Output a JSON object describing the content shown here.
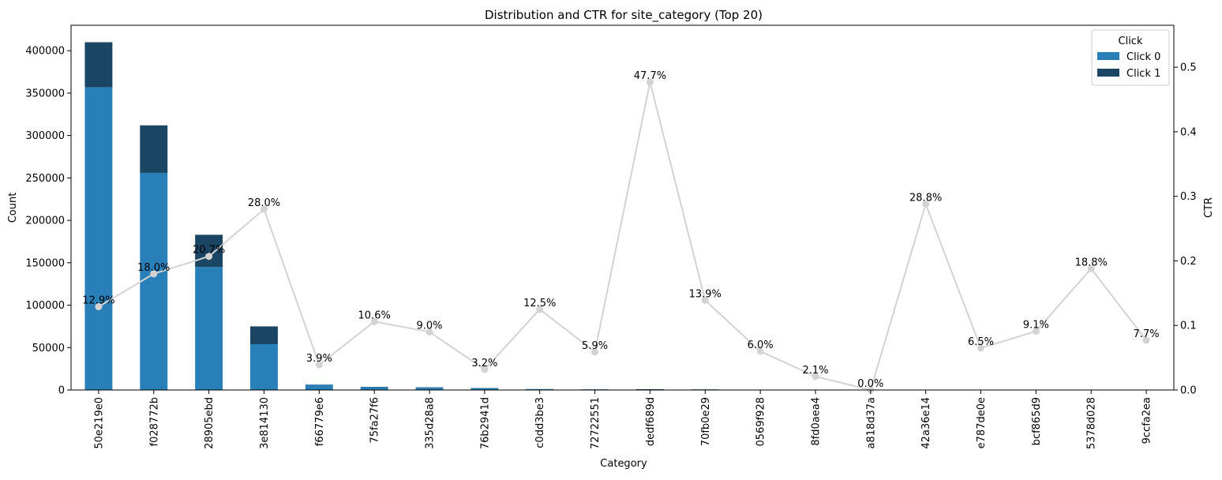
{
  "chart_data": {
    "type": "bar",
    "title": "Distribution and CTR for site_category (Top 20)",
    "xlabel": "Category",
    "ylabel": "Count",
    "y2label": "CTR",
    "ylim": [
      0,
      430000
    ],
    "y2lim": [
      0,
      0.565
    ],
    "yticks": [
      "0",
      "50000",
      "100000",
      "150000",
      "200000",
      "250000",
      "300000",
      "350000",
      "400000"
    ],
    "y2ticks": [
      "0.0",
      "0.1",
      "0.2",
      "0.3",
      "0.4",
      "0.5"
    ],
    "categories": [
      "50e219e0",
      "f028772b",
      "28905ebd",
      "3e814130",
      "f66779e6",
      "75fa27f6",
      "335d28a8",
      "76b2941d",
      "c0dd3be3",
      "72722551",
      "dedf689d",
      "70fb0e29",
      "0569f928",
      "8fd0aea4",
      "a818d37a",
      "42a36e14",
      "e787de0e",
      "bcf865d9",
      "5378d028",
      "9ccfa2ea"
    ],
    "series": [
      {
        "name": "Click 0",
        "color": "#2980b9",
        "values": [
          357000,
          256000,
          145000,
          54000,
          6200,
          3300,
          3000,
          2300,
          1000,
          800,
          500,
          700,
          300,
          250,
          100,
          60,
          40,
          35,
          30,
          25
        ]
      },
      {
        "name": "Click 1",
        "color": "#1a4563",
        "values": [
          53000,
          56000,
          38000,
          21000,
          250,
          400,
          300,
          80,
          140,
          50,
          450,
          110,
          20,
          5,
          0,
          25,
          3,
          3,
          7,
          2
        ]
      }
    ],
    "line_series": {
      "color": "#d3d3d3",
      "values": [
        0.129,
        0.18,
        0.207,
        0.28,
        0.039,
        0.106,
        0.09,
        0.032,
        0.125,
        0.059,
        0.477,
        0.139,
        0.06,
        0.021,
        0.0,
        0.288,
        0.065,
        0.091,
        0.188,
        0.077
      ],
      "labels": [
        "12.9%",
        "18.0%",
        "20.7%",
        "28.0%",
        "3.9%",
        "10.6%",
        "9.0%",
        "3.2%",
        "12.5%",
        "5.9%",
        "47.7%",
        "13.9%",
        "6.0%",
        "2.1%",
        "0.0%",
        "28.8%",
        "6.5%",
        "9.1%",
        "18.8%",
        "7.7%"
      ]
    },
    "legend": {
      "title": "Click",
      "position": "top-right"
    },
    "grid": false
  }
}
